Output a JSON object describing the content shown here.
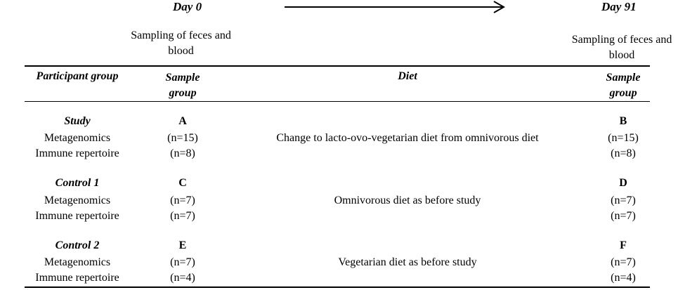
{
  "timeline": {
    "start_label": "Day 0",
    "end_label": "Day 91",
    "start_sampling": "Sampling of feces and blood",
    "end_sampling": "Sampling of feces and blood"
  },
  "header": {
    "participant_group": "Participant group",
    "sample_group_left_line1": "Sample",
    "sample_group_left_line2": "group",
    "diet": "Diet",
    "sample_group_right_line1": "Sample",
    "sample_group_right_line2": "group"
  },
  "groups": [
    {
      "name": "Study",
      "left_sample": "A",
      "right_sample": "B",
      "diet": "Change to lacto-ovo-vegetarian diet from omnivorous diet",
      "rows": [
        {
          "label": "Metagenomics",
          "left": "(n=15)",
          "right": "(n=15)"
        },
        {
          "label": "Immune repertoire",
          "left": "(n=8)",
          "right": "(n=8)"
        }
      ]
    },
    {
      "name": "Control 1",
      "left_sample": "C",
      "right_sample": "D",
      "diet": "Omnivorous diet as before study",
      "rows": [
        {
          "label": "Metagenomics",
          "left": "(n=7)",
          "right": "(n=7)"
        },
        {
          "label": "Immune repertoire",
          "left": "(n=7)",
          "right": "(n=7)"
        }
      ]
    },
    {
      "name": "Control 2",
      "left_sample": "E",
      "right_sample": "F",
      "diet": "Vegetarian diet as before study",
      "rows": [
        {
          "label": "Metagenomics",
          "left": "(n=7)",
          "right": "(n=7)"
        },
        {
          "label": "Immune repertoire",
          "left": "(n=4)",
          "right": "(n=4)"
        }
      ]
    }
  ]
}
